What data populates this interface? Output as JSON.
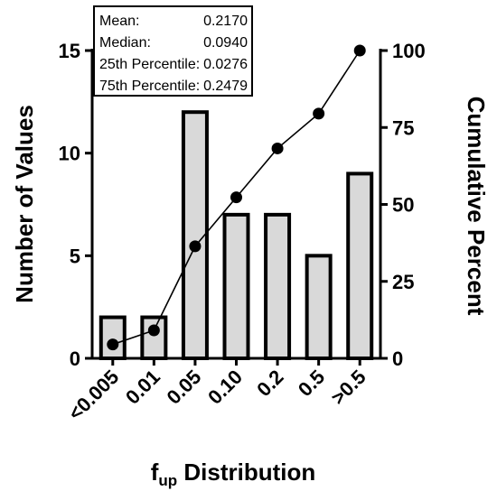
{
  "chart_data": {
    "type": "bar",
    "categories": [
      "<0.005",
      "0.01",
      "0.05",
      "0.10",
      "0.2",
      "0.5",
      ">0.5"
    ],
    "series": [
      {
        "values": [
          2,
          2,
          12,
          7,
          7,
          5,
          9
        ],
        "axis": "left"
      },
      {
        "values": [
          4.5,
          9.1,
          36.4,
          52.3,
          68.2,
          79.5,
          100
        ],
        "axis": "right",
        "type": "line"
      }
    ],
    "ylim": [
      0,
      15
    ],
    "y2lim": [
      0,
      100
    ],
    "yticks": [
      0,
      5,
      10,
      15
    ],
    "y2ticks": [
      0,
      25,
      50,
      75,
      100
    ],
    "xlabel_main": "f",
    "xlabel_sub": "up",
    "xlabel_rest": " Distribution",
    "ylabel": "Number of Values",
    "y2label": "Cumulative Percent",
    "stats": [
      {
        "label": "Mean:",
        "value": "0.2170"
      },
      {
        "label": "Median:",
        "value": "0.0940"
      },
      {
        "label": "25th Percentile:",
        "value": "0.0276"
      },
      {
        "label": "75th Percentile:",
        "value": "0.2479"
      }
    ],
    "colors": {
      "bar_fill": "#d9d9d9",
      "bar_stroke": "#000000",
      "line": "#000000",
      "marker": "#000000"
    },
    "grid": false
  }
}
